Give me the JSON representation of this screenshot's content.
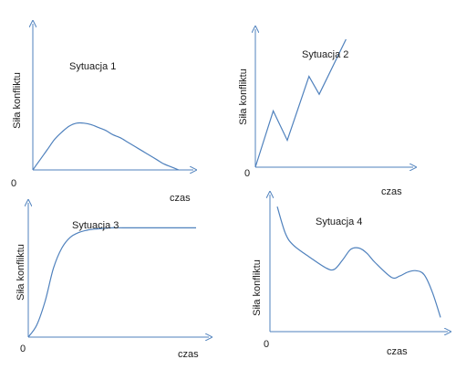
{
  "colors": {
    "axis": "#4f81bd",
    "curve": "#4f81bd",
    "text": "#1a1a1a"
  },
  "chart_data": [
    {
      "type": "line",
      "title": "Sytuacja 1",
      "ylabel": "Siła konfliktu",
      "xlabel": "czas",
      "origin_label": "0",
      "x": [
        0,
        0.05,
        0.1,
        0.15,
        0.2,
        0.25,
        0.3,
        0.35,
        0.4,
        0.45,
        0.5,
        0.55,
        0.6,
        0.65,
        0.7,
        0.75,
        0.8,
        0.85,
        0.9,
        0.95,
        1.0
      ],
      "series": [
        {
          "values": [
            0,
            0.07,
            0.14,
            0.21,
            0.26,
            0.3,
            0.32,
            0.32,
            0.31,
            0.29,
            0.27,
            0.24,
            0.22,
            0.19,
            0.16,
            0.13,
            0.1,
            0.07,
            0.04,
            0.02,
            0
          ]
        }
      ],
      "xlim": [
        0,
        1
      ],
      "ylim": [
        0,
        1
      ],
      "grid": false
    },
    {
      "type": "line",
      "title": "Sytuacja 2",
      "ylabel": "Siła konfliktu",
      "xlabel": "czas",
      "origin_label": "0",
      "x": [
        0,
        0.14,
        0.25,
        0.42,
        0.5,
        0.71
      ],
      "series": [
        {
          "values": [
            0,
            0.44,
            0.21,
            0.71,
            0.57,
            1.0
          ]
        }
      ],
      "xlim": [
        0,
        1
      ],
      "ylim": [
        0,
        1
      ],
      "grid": false
    },
    {
      "type": "line",
      "title": "Sytuacja 3",
      "ylabel": "Siła konfliktu",
      "xlabel": "czas",
      "origin_label": "0",
      "x": [
        0,
        0.05,
        0.1,
        0.15,
        0.2,
        0.25,
        0.3,
        0.35,
        0.4,
        0.5,
        0.6,
        0.7,
        0.8,
        0.9,
        1.0
      ],
      "series": [
        {
          "values": [
            0,
            0.1,
            0.3,
            0.58,
            0.75,
            0.84,
            0.88,
            0.9,
            0.91,
            0.92,
            0.92,
            0.92,
            0.92,
            0.92,
            0.92
          ]
        }
      ],
      "xlim": [
        0,
        1.1
      ],
      "ylim": [
        0,
        1
      ],
      "grid": false
    },
    {
      "type": "line",
      "title": "Sytuacja 4",
      "ylabel": "Siła konfliktu",
      "xlabel": "czas",
      "origin_label": "0",
      "x": [
        0,
        0.05,
        0.1,
        0.2,
        0.3,
        0.35,
        0.4,
        0.45,
        0.5,
        0.55,
        0.6,
        0.7,
        0.75,
        0.8,
        0.85,
        0.9,
        0.95,
        1.0
      ],
      "series": [
        {
          "values": [
            0.93,
            0.73,
            0.64,
            0.55,
            0.47,
            0.46,
            0.53,
            0.61,
            0.62,
            0.58,
            0.51,
            0.4,
            0.41,
            0.44,
            0.45,
            0.42,
            0.29,
            0.1
          ]
        }
      ],
      "xlim": [
        0,
        1
      ],
      "ylim": [
        0,
        1
      ],
      "grid": false
    }
  ]
}
